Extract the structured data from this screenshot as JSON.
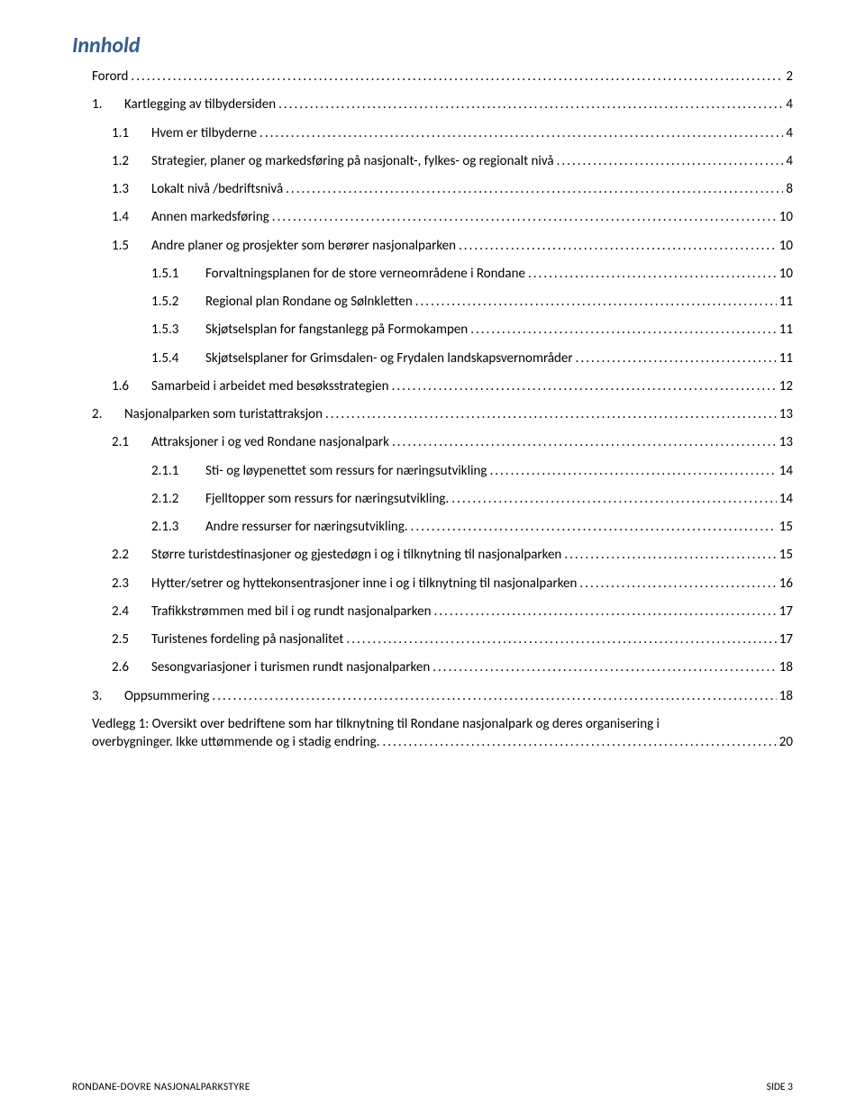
{
  "title": "Innhold",
  "title_color": "#365f91",
  "entries": [
    {
      "indent": 1,
      "num": "",
      "label": "Forord",
      "page": "2"
    },
    {
      "indent": 1,
      "num": "1.",
      "label": "Kartlegging av tilbydersiden",
      "page": "4"
    },
    {
      "indent": 2,
      "num": "1.1",
      "label": "Hvem er tilbyderne",
      "page": "4"
    },
    {
      "indent": 2,
      "num": "1.2",
      "label": "Strategier, planer og markedsføring på nasjonalt-, fylkes- og regionalt nivå",
      "page": "4"
    },
    {
      "indent": 2,
      "num": "1.3",
      "label": "Lokalt nivå /bedriftsnivå",
      "page": "8"
    },
    {
      "indent": 2,
      "num": "1.4",
      "label": "Annen markedsføring",
      "page": "10"
    },
    {
      "indent": 2,
      "num": "1.5",
      "label": "Andre planer og prosjekter som berører nasjonalparken",
      "page": "10"
    },
    {
      "indent": 3,
      "num": "1.5.1",
      "label": "Forvaltningsplanen for de store verneområdene i Rondane",
      "page": "10"
    },
    {
      "indent": 3,
      "num": "1.5.2",
      "label": "Regional plan Rondane og Sølnkletten",
      "page": "11"
    },
    {
      "indent": 3,
      "num": "1.5.3",
      "label": "Skjøtselsplan for fangstanlegg på Formokampen",
      "page": "11"
    },
    {
      "indent": 3,
      "num": "1.5.4",
      "label": "Skjøtselsplaner for Grimsdalen- og Frydalen landskapsvernområder",
      "page": "11"
    },
    {
      "indent": 2,
      "num": "1.6",
      "label": "Samarbeid i arbeidet med besøksstrategien",
      "page": "12"
    },
    {
      "indent": 1,
      "num": "2.",
      "label": "Nasjonalparken som turistattraksjon",
      "page": "13"
    },
    {
      "indent": 2,
      "num": "2.1",
      "label": "Attraksjoner i og ved Rondane nasjonalpark",
      "page": "13"
    },
    {
      "indent": 3,
      "num": "2.1.1",
      "label": "Sti- og løypenettet som ressurs for næringsutvikling",
      "page": "14"
    },
    {
      "indent": 3,
      "num": "2.1.2",
      "label": "Fjelltopper som ressurs for næringsutvikling.",
      "page": "14"
    },
    {
      "indent": 3,
      "num": "2.1.3",
      "label": "Andre ressurser for næringsutvikling.",
      "page": "15"
    },
    {
      "indent": 2,
      "num": "2.2",
      "label": "Større turistdestinasjoner og gjestedøgn i og i tilknytning til nasjonalparken",
      "page": "15"
    },
    {
      "indent": 2,
      "num": "2.3",
      "label": "Hytter/setrer og hyttekonsentrasjoner inne i og i tilknytning til nasjonalparken",
      "page": "16"
    },
    {
      "indent": 2,
      "num": "2.4",
      "label": "Trafikkstrømmen med bil i og rundt nasjonalparken",
      "page": "17"
    },
    {
      "indent": 2,
      "num": "2.5",
      "label": "Turistenes fordeling på nasjonalitet",
      "page": "17"
    },
    {
      "indent": 2,
      "num": "2.6",
      "label": "Sesongvariasjoner i turismen rundt nasjonalparken",
      "page": "18"
    },
    {
      "indent": 1,
      "num": "3.",
      "label": "Oppsummering",
      "page": "18"
    },
    {
      "indent": 1,
      "num": "",
      "label_multiline": [
        "Vedlegg 1: Oversikt over bedriftene som har tilknytning til Rondane nasjonalpark og deres organisering i",
        "overbygninger. Ikke uttømmende og i stadig endring."
      ],
      "page": "20"
    }
  ],
  "footer_left": "RONDANE-DOVRE NASJONALPARKSTYRE",
  "footer_right_label": "SIDE",
  "footer_right_page": "3"
}
